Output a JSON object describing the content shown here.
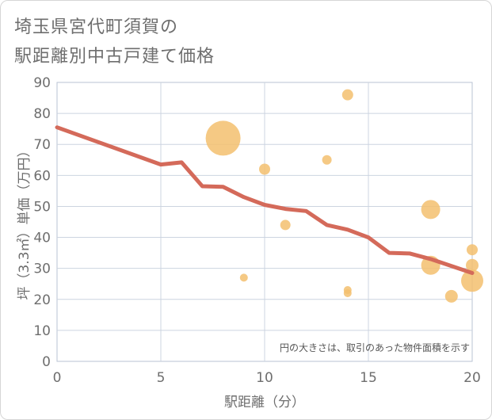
{
  "title_line1": "埼玉県宮代町須賀の",
  "title_line2": "駅距離別中古戸建て価格",
  "chart_data": {
    "type": "scatter",
    "xlabel": "駅距離（分）",
    "ylabel": "坪（3.3㎡）単価（万円）",
    "xlim": [
      0,
      20
    ],
    "ylim": [
      0,
      90
    ],
    "xticks": [
      0,
      5,
      10,
      15,
      20
    ],
    "yticks": [
      0,
      10,
      20,
      30,
      40,
      50,
      60,
      70,
      80,
      90
    ],
    "grid": true,
    "note": "円の大きさは、取引のあった物件面積を示す",
    "bubble_color": "#f3c06e",
    "line_color": "#d46a5a",
    "points": [
      {
        "x": 8,
        "y": 72,
        "size": 22
      },
      {
        "x": 14,
        "y": 86,
        "size": 7
      },
      {
        "x": 10,
        "y": 62,
        "size": 7
      },
      {
        "x": 13,
        "y": 65,
        "size": 6
      },
      {
        "x": 18,
        "y": 49,
        "size": 12
      },
      {
        "x": 11,
        "y": 44,
        "size": 6.5
      },
      {
        "x": 20,
        "y": 36,
        "size": 7
      },
      {
        "x": 18,
        "y": 31,
        "size": 12
      },
      {
        "x": 20,
        "y": 31,
        "size": 8
      },
      {
        "x": 9,
        "y": 27,
        "size": 5
      },
      {
        "x": 20,
        "y": 26,
        "size": 14
      },
      {
        "x": 14,
        "y": 23,
        "size": 5
      },
      {
        "x": 14,
        "y": 22,
        "size": 5
      },
      {
        "x": 19,
        "y": 21,
        "size": 8
      }
    ],
    "trend_line": [
      {
        "x": 0,
        "y": 75.5
      },
      {
        "x": 5,
        "y": 63.5
      },
      {
        "x": 6,
        "y": 64.2
      },
      {
        "x": 7,
        "y": 56.5
      },
      {
        "x": 8,
        "y": 56.3
      },
      {
        "x": 9,
        "y": 53
      },
      {
        "x": 10,
        "y": 50.5
      },
      {
        "x": 11,
        "y": 49.2
      },
      {
        "x": 12,
        "y": 48.5
      },
      {
        "x": 13,
        "y": 44
      },
      {
        "x": 14,
        "y": 42.5
      },
      {
        "x": 15,
        "y": 40
      },
      {
        "x": 16,
        "y": 35
      },
      {
        "x": 17,
        "y": 34.8
      },
      {
        "x": 18,
        "y": 33
      },
      {
        "x": 20,
        "y": 28.5
      }
    ]
  }
}
